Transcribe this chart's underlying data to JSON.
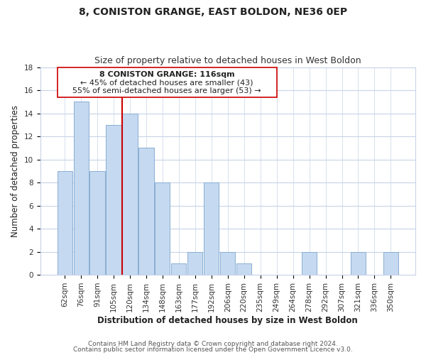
{
  "title": "8, CONISTON GRANGE, EAST BOLDON, NE36 0EP",
  "subtitle": "Size of property relative to detached houses in West Boldon",
  "xlabel": "Distribution of detached houses by size in West Boldon",
  "ylabel": "Number of detached properties",
  "bar_labels": [
    "62sqm",
    "76sqm",
    "91sqm",
    "105sqm",
    "120sqm",
    "134sqm",
    "148sqm",
    "163sqm",
    "177sqm",
    "192sqm",
    "206sqm",
    "220sqm",
    "235sqm",
    "249sqm",
    "264sqm",
    "278sqm",
    "292sqm",
    "307sqm",
    "321sqm",
    "336sqm",
    "350sqm"
  ],
  "bar_values": [
    9,
    15,
    9,
    13,
    14,
    11,
    8,
    1,
    2,
    8,
    2,
    1,
    0,
    0,
    0,
    2,
    0,
    0,
    2,
    0,
    2
  ],
  "bar_color": "#c5d9f0",
  "bar_edge_color": "#89afd4",
  "vline_color": "#cc0000",
  "vline_x_index": 4,
  "ann_line1": "8 CONISTON GRANGE: 116sqm",
  "ann_line2": "← 45% of detached houses are smaller (43)",
  "ann_line3": "55% of semi-detached houses are larger (53) →",
  "ylim": [
    0,
    18
  ],
  "yticks": [
    0,
    2,
    4,
    6,
    8,
    10,
    12,
    14,
    16,
    18
  ],
  "footer1": "Contains HM Land Registry data © Crown copyright and database right 2024.",
  "footer2": "Contains public sector information licensed under the Open Government Licence v3.0.",
  "title_fontsize": 10,
  "subtitle_fontsize": 9,
  "xlabel_fontsize": 8.5,
  "ylabel_fontsize": 8.5,
  "tick_fontsize": 7.5,
  "annotation_fontsize": 8,
  "footer_fontsize": 6.5,
  "background_color": "#ffffff",
  "grid_color": "#c8d4e8"
}
